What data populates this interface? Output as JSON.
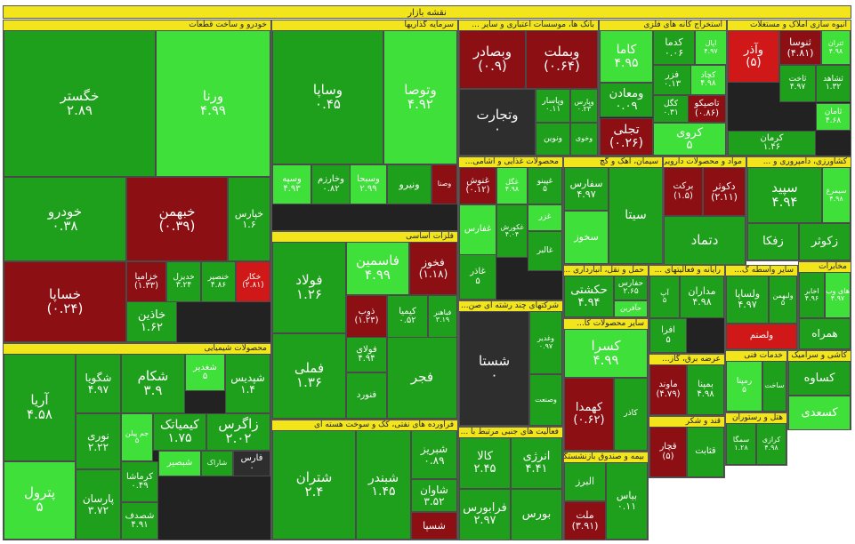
{
  "title": "نقشه بازار",
  "colors": {
    "up_strong": "#3fe03a",
    "up": "#1ea01c",
    "up_dark": "#0e7a16",
    "down": "#8b0f13",
    "down_strong": "#d01818",
    "flat": "#2e2e2e",
    "header": "#f2e51b"
  },
  "chart_data": {
    "type": "treemap",
    "title": "نقشه بازار",
    "sectors": [
      {
        "name": "خودرو و ساخت قطعات",
        "tiles": [
          {
            "symbol": "خگستر",
            "value": "۲.۸۹",
            "status": "up"
          },
          {
            "symbol": "ورنا",
            "value": "۴.۹۹",
            "status": "up_strong"
          },
          {
            "symbol": "خودرو",
            "value": "۰.۳۸",
            "status": "up"
          },
          {
            "symbol": "خبهمن",
            "value": "(۰.۳۹)",
            "status": "down"
          },
          {
            "symbol": "خپارس",
            "value": "۱.۶",
            "status": "up"
          },
          {
            "symbol": "خساپا",
            "value": "(۰.۲۴)",
            "status": "down"
          },
          {
            "symbol": "خزامیا",
            "value": "(۱.۳۳)",
            "status": "down"
          },
          {
            "symbol": "خدیزل",
            "value": "۳.۲۴",
            "status": "up"
          },
          {
            "symbol": "خنصیر",
            "value": "۴.۸۶",
            "status": "up"
          },
          {
            "symbol": "خکار",
            "value": "(۲.۸۱)",
            "status": "down_strong"
          },
          {
            "symbol": "خاذین",
            "value": "۱.۶۲",
            "status": "up"
          }
        ]
      },
      {
        "name": "سرمایه گذاریها",
        "tiles": [
          {
            "symbol": "وساپا",
            "value": "۰.۴۵",
            "status": "up"
          },
          {
            "symbol": "وتوصا",
            "value": "۴.۹۲",
            "status": "up_strong"
          },
          {
            "symbol": "وسپه",
            "value": "۴.۹۳",
            "status": "up_strong"
          },
          {
            "symbol": "وخارزم",
            "value": "۰.۸۲",
            "status": "up"
          },
          {
            "symbol": "وسبحا",
            "value": "۲.۹۹",
            "status": "up_strong"
          },
          {
            "symbol": "وصنا",
            "value": "",
            "status": "down"
          },
          {
            "symbol": "ونیرو",
            "value": "",
            "status": "up"
          }
        ]
      },
      {
        "name": "بانک ها، موسسات اعتباری و سایر ...",
        "tiles": [
          {
            "symbol": "وبصادر",
            "value": "(۰.۹)",
            "status": "down"
          },
          {
            "symbol": "وبملت",
            "value": "(۰.۶۴)",
            "status": "down"
          },
          {
            "symbol": "وتجارت",
            "value": "۰",
            "status": "flat"
          },
          {
            "symbol": "وپاسار",
            "value": "۰.۱۱",
            "status": "up"
          },
          {
            "symbol": "وپارس",
            "value": "۰.۲۳",
            "status": "up"
          },
          {
            "symbol": "ونوین",
            "value": "",
            "status": "up"
          },
          {
            "symbol": "وخوی",
            "value": "",
            "status": "up"
          }
        ]
      },
      {
        "name": "استخراج کانه های فلزی",
        "tiles": [
          {
            "symbol": "کاما",
            "value": "۴.۹۵",
            "status": "up_strong"
          },
          {
            "symbol": "کدما",
            "value": "۰.۰۶",
            "status": "up"
          },
          {
            "symbol": "اپال",
            "value": "۴.۹۷",
            "status": "up_strong"
          },
          {
            "symbol": "ومعادن",
            "value": "۰.۰۹",
            "status": "up"
          },
          {
            "symbol": "فزر",
            "value": "۰.۱۳",
            "status": "up"
          },
          {
            "symbol": "کچاد",
            "value": "۴.۹۸",
            "status": "up_strong"
          },
          {
            "symbol": "کگل",
            "value": "۰.۳۱",
            "status": "up"
          },
          {
            "symbol": "تاصیکو",
            "value": "(۰.۸۶)",
            "status": "down"
          },
          {
            "symbol": "تجلی",
            "value": "(۰.۲۶)",
            "status": "down"
          },
          {
            "symbol": "کروی",
            "value": "۵",
            "status": "up_strong"
          }
        ]
      },
      {
        "name": "انبوه سازی املاک و مستغلات",
        "tiles": [
          {
            "symbol": "وآذر",
            "value": "(۵)",
            "status": "down_strong"
          },
          {
            "symbol": "ثنوسا",
            "value": "(۴.۸۱)",
            "status": "down"
          },
          {
            "symbol": "ثتران",
            "value": "۴.۹۸",
            "status": "up_strong"
          },
          {
            "symbol": "ثاخت",
            "value": "۴.۹۷",
            "status": "up"
          },
          {
            "symbol": "ثشاهد",
            "value": "۱.۳۲",
            "status": "up"
          },
          {
            "symbol": "ثامان",
            "value": "۴.۶۸",
            "status": "up_strong"
          },
          {
            "symbol": "کرمان",
            "value": "۱.۴۶",
            "status": "up"
          }
        ]
      },
      {
        "name": "محصولات غذایی و آشامی...",
        "tiles": [
          {
            "symbol": "غنوش",
            "value": "(۰.۱۲)",
            "status": "down"
          },
          {
            "symbol": "غگل",
            "value": "۴.۹۸",
            "status": "up_strong"
          },
          {
            "symbol": "غپینو",
            "value": "۵",
            "status": "up"
          },
          {
            "symbol": "غفارس",
            "value": "",
            "status": "up_strong"
          },
          {
            "symbol": "غکورش",
            "value": "۴.۰۴",
            "status": "up"
          },
          {
            "symbol": "غزر",
            "value": "",
            "status": "up_strong"
          },
          {
            "symbol": "غالبر",
            "value": "",
            "status": "up"
          },
          {
            "symbol": "غاذر",
            "value": "۵",
            "status": "up"
          }
        ]
      },
      {
        "name": "سیمان، آهک و گچ",
        "tiles": [
          {
            "symbol": "سفارس",
            "value": "۴.۹۷",
            "status": "up"
          },
          {
            "symbol": "سخوز",
            "value": "",
            "status": "up_strong"
          },
          {
            "symbol": "سیتا",
            "value": "",
            "status": "up"
          }
        ]
      },
      {
        "name": "مواد و محصولات دارویی",
        "tiles": [
          {
            "symbol": "برکت",
            "value": "(۱.۵)",
            "status": "down"
          },
          {
            "symbol": "دکوثر",
            "value": "(۲.۱۱)",
            "status": "down"
          },
          {
            "symbol": "دتماد",
            "value": "",
            "status": "up"
          }
        ]
      },
      {
        "name": "کشاورزی، دامپروری و ...",
        "tiles": [
          {
            "symbol": "سپید",
            "value": "۴.۹۴",
            "status": "up"
          },
          {
            "symbol": "سیمرغ",
            "value": "۴.۹۸",
            "status": "up_strong"
          },
          {
            "symbol": "زفکا",
            "value": "",
            "status": "up"
          },
          {
            "symbol": "زکوثر",
            "value": "",
            "status": "up"
          }
        ]
      },
      {
        "name": "فلزات اساسی",
        "tiles": [
          {
            "symbol": "فولاد",
            "value": "۱.۲۶",
            "status": "up"
          },
          {
            "symbol": "فاسمین",
            "value": "۴.۹۹",
            "status": "up_strong"
          },
          {
            "symbol": "فخوز",
            "value": "(۱.۱۸)",
            "status": "down"
          },
          {
            "symbol": "فملی",
            "value": "۱.۳۶",
            "status": "up"
          },
          {
            "symbol": "ذوب",
            "value": "(۱.۲۳)",
            "status": "down"
          },
          {
            "symbol": "کیمیا",
            "value": "۰.۵۲",
            "status": "up"
          },
          {
            "symbol": "فباهنر",
            "value": "۳.۱۹",
            "status": "up"
          },
          {
            "symbol": "فولای",
            "value": "۴.۹۴",
            "status": "up"
          },
          {
            "symbol": "فنورد",
            "value": "",
            "status": "up"
          },
          {
            "symbol": "فجر",
            "value": "",
            "status": "up"
          }
        ]
      },
      {
        "name": "شرکتهای چند رشته ای صن...",
        "tiles": [
          {
            "symbol": "شستا",
            "value": "۰",
            "status": "flat"
          },
          {
            "symbol": "وغدیر",
            "value": "۰.۹۷",
            "status": "up"
          },
          {
            "symbol": "وصنعت",
            "value": "",
            "status": "up"
          }
        ]
      },
      {
        "name": "محصولات شیمیایی",
        "tiles": [
          {
            "symbol": "آریا",
            "value": "۴.۵۸",
            "status": "up"
          },
          {
            "symbol": "شگویا",
            "value": "۴.۹۷",
            "status": "up"
          },
          {
            "symbol": "شکام",
            "value": "۳.۹",
            "status": "up"
          },
          {
            "symbol": "شغدیر",
            "value": "۵",
            "status": "up_strong"
          },
          {
            "symbol": "شپدیس",
            "value": "۱.۴",
            "status": "up"
          },
          {
            "symbol": "جم پیلن",
            "value": "۵",
            "status": "up_strong"
          },
          {
            "symbol": "کیمیاتک",
            "value": "۱.۷۵",
            "status": "up"
          },
          {
            "symbol": "زاگرس",
            "value": "۲.۰۲",
            "status": "up"
          },
          {
            "symbol": "نوری",
            "value": "۲.۲۲",
            "status": "up"
          },
          {
            "symbol": "کرماشا",
            "value": "۰.۴۹",
            "status": "up"
          },
          {
            "symbol": "شبصیر",
            "value": "",
            "status": "up_strong"
          },
          {
            "symbol": "شاراک",
            "value": "",
            "status": "up"
          },
          {
            "symbol": "فارس",
            "value": "۰",
            "status": "flat"
          },
          {
            "symbol": "پترول",
            "value": "۵",
            "status": "up_strong"
          },
          {
            "symbol": "پارسان",
            "value": "۳.۷۲",
            "status": "up"
          },
          {
            "symbol": "شصدف",
            "value": "۴.۹۱",
            "status": "up"
          }
        ]
      },
      {
        "name": "فراورده های نفتی، کک و سوخت هسته ای",
        "tiles": [
          {
            "symbol": "شتران",
            "value": "۲.۴",
            "status": "up"
          },
          {
            "symbol": "شبندر",
            "value": "۱.۴۵",
            "status": "up"
          },
          {
            "symbol": "شبریز",
            "value": "۰.۸۹",
            "status": "up"
          },
          {
            "symbol": "شاوان",
            "value": "۳.۵۲",
            "status": "up"
          },
          {
            "symbol": "شسپا",
            "value": "",
            "status": "down"
          }
        ]
      },
      {
        "name": "فعالیت های جنبی مرتبط با ...",
        "tiles": [
          {
            "symbol": "کالا",
            "value": "۲.۴۵",
            "status": "up"
          },
          {
            "symbol": "انرژی",
            "value": "۴.۴۱",
            "status": "up"
          },
          {
            "symbol": "فرابورس",
            "value": "۲.۹۷",
            "status": "up"
          },
          {
            "symbol": "بورس",
            "value": "",
            "status": "up"
          }
        ]
      },
      {
        "name": "حمل و نقل، انبارداری ...",
        "tiles": [
          {
            "symbol": "حکشتی",
            "value": "۴.۹۴",
            "status": "up"
          },
          {
            "symbol": "حفارس",
            "value": "۲.۶۵",
            "status": "up"
          },
          {
            "symbol": "حآفرین",
            "value": "",
            "status": "up_strong"
          }
        ]
      },
      {
        "name": "رایانه و فعالیتهای ...",
        "tiles": [
          {
            "symbol": "آپ",
            "value": "۵",
            "status": "up"
          },
          {
            "symbol": "مداران",
            "value": "۴.۹۸",
            "status": "up"
          },
          {
            "symbol": "افرا",
            "value": "۵",
            "status": "up"
          }
        ]
      },
      {
        "name": "سایر واسطه گ...",
        "tiles": [
          {
            "symbol": "ولساپا",
            "value": "۴.۹۷",
            "status": "up"
          },
          {
            "symbol": "ولبهمن",
            "value": "۵",
            "status": "up"
          },
          {
            "symbol": "ولصنم",
            "value": "",
            "status": "down_strong"
          }
        ]
      },
      {
        "name": "مخابرات",
        "tiles": [
          {
            "symbol": "اخابر",
            "value": "۴.۹۶",
            "status": "up"
          },
          {
            "symbol": "های وب",
            "value": "۴.۹۷",
            "status": "up_strong"
          },
          {
            "symbol": "همراه",
            "value": "",
            "status": "up"
          }
        ]
      },
      {
        "name": "سایر محصولات کا...",
        "tiles": [
          {
            "symbol": "کسرا",
            "value": "۴.۹۹",
            "status": "up_strong"
          },
          {
            "symbol": "کهمدا",
            "value": "(۰.۶۲)",
            "status": "down"
          },
          {
            "symbol": "کاذر",
            "value": "",
            "status": "up"
          }
        ]
      },
      {
        "name": "عرضه برق، گاز...",
        "tiles": [
          {
            "symbol": "ماوند",
            "value": "(۴.۷۹)",
            "status": "down"
          },
          {
            "symbol": "بمپنا",
            "value": "۴.۹۸",
            "status": "up"
          }
        ]
      },
      {
        "name": "خدمات فنی",
        "tiles": [
          {
            "symbol": "رمپنا",
            "value": "۵",
            "status": "up_strong"
          },
          {
            "symbol": "ساخت",
            "value": "",
            "status": "up"
          }
        ]
      },
      {
        "name": "کاشی و سرامیک",
        "tiles": [
          {
            "symbol": "کساوه",
            "value": "",
            "status": "up"
          },
          {
            "symbol": "کسعدی",
            "value": "",
            "status": "up_strong"
          }
        ]
      },
      {
        "name": "قند و شکر",
        "tiles": [
          {
            "symbol": "قچار",
            "value": "(۵)",
            "status": "down"
          },
          {
            "symbol": "قثابت",
            "value": "",
            "status": "up"
          }
        ]
      },
      {
        "name": "بیمه و صندوق بازنشستگی",
        "tiles": [
          {
            "symbol": "البرز",
            "value": "",
            "status": "up"
          },
          {
            "symbol": "ملت",
            "value": "(۳.۹۱)",
            "status": "down"
          },
          {
            "symbol": "بیاس",
            "value": "۰.۱۱",
            "status": "up"
          }
        ]
      },
      {
        "name": "هتل و رستوران",
        "tiles": [
          {
            "symbol": "سمگا",
            "value": "۱.۲۸",
            "status": "up"
          },
          {
            "symbol": "کرازی",
            "value": "۴.۹۸",
            "status": "up"
          }
        ]
      }
    ]
  }
}
